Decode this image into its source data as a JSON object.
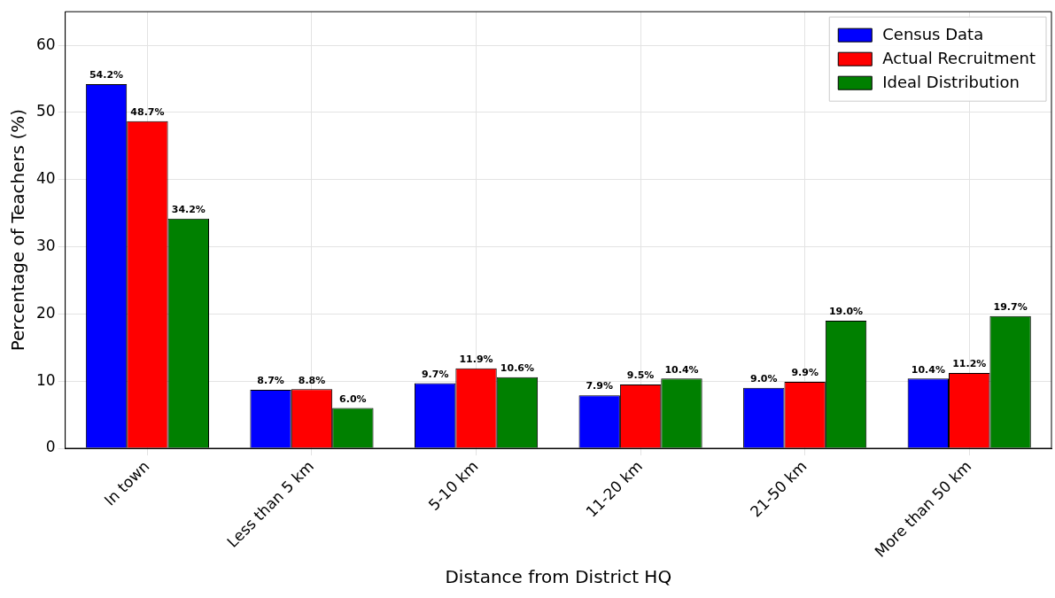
{
  "chart_data": {
    "type": "bar",
    "xlabel": "Distance from District HQ",
    "ylabel": "Percentage of Teachers (%)",
    "categories": [
      "In town",
      "Less than 5 km",
      "5-10 km",
      "11-20 km",
      "21-50 km",
      "More than 50 km"
    ],
    "series": [
      {
        "name": "Census Data",
        "color": "#0000ff",
        "values": [
          54.2,
          8.7,
          9.7,
          7.9,
          9.0,
          10.4
        ],
        "value_labels": [
          "54.2%",
          "8.7%",
          "9.7%",
          "7.9%",
          "9.0%",
          "10.4%"
        ]
      },
      {
        "name": "Actual Recruitment",
        "color": "#ff0000",
        "values": [
          48.7,
          8.8,
          11.9,
          9.5,
          9.9,
          11.2
        ],
        "value_labels": [
          "48.7%",
          "8.8%",
          "11.9%",
          "9.5%",
          "9.9%",
          "11.2%"
        ]
      },
      {
        "name": "Ideal Distribution",
        "color": "#008000",
        "values": [
          34.2,
          6.0,
          10.6,
          10.4,
          19.0,
          19.7
        ],
        "value_labels": [
          "34.2%",
          "6.0%",
          "10.6%",
          "10.4%",
          "19.0%",
          "19.7%"
        ]
      }
    ],
    "ylim": [
      0,
      65
    ],
    "yticks": [
      0,
      10,
      20,
      30,
      40,
      50,
      60
    ],
    "grid": true,
    "legend": "top right"
  }
}
